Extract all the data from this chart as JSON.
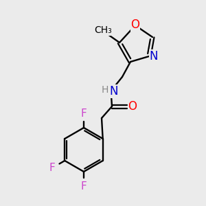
{
  "background_color": "#ebebeb",
  "bond_color": "#000000",
  "atom_colors": {
    "O": "#ff0000",
    "N": "#0000cd",
    "F": "#cc44cc",
    "C": "#000000",
    "H": "#888888"
  },
  "title": "",
  "figsize": [
    3.0,
    3.0
  ],
  "dpi": 100
}
